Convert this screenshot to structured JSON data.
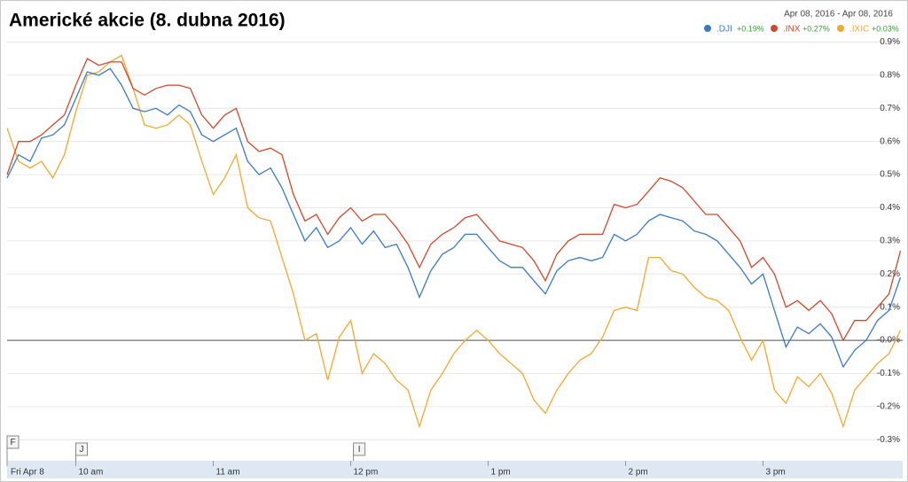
{
  "chart_data": {
    "type": "line",
    "title": "Americké akcie (8. dubna 2016)",
    "date_range": "Apr 08, 2016  -  Apr 08, 2016",
    "x": [
      9.5,
      9.583,
      9.667,
      9.75,
      9.833,
      9.917,
      10,
      10.083,
      10.167,
      10.25,
      10.333,
      10.417,
      10.5,
      10.583,
      10.667,
      10.75,
      10.833,
      10.917,
      11,
      11.083,
      11.167,
      11.25,
      11.333,
      11.417,
      11.5,
      11.583,
      11.667,
      11.75,
      11.833,
      11.917,
      12,
      12.083,
      12.167,
      12.25,
      12.333,
      12.417,
      12.5,
      12.583,
      12.667,
      12.75,
      12.833,
      12.917,
      13,
      13.083,
      13.167,
      13.25,
      13.333,
      13.417,
      13.5,
      13.583,
      13.667,
      13.75,
      13.833,
      13.917,
      14,
      14.083,
      14.167,
      14.25,
      14.333,
      14.417,
      14.5,
      14.583,
      14.667,
      14.75,
      14.833,
      14.917,
      15,
      15.083,
      15.167,
      15.25,
      15.333,
      15.417,
      15.5,
      15.583,
      15.667,
      15.75,
      15.833,
      15.917,
      16
    ],
    "series": [
      {
        "name": ".DJI",
        "change": "+0.19%",
        "color": "#3a7bbf",
        "values": [
          0.49,
          0.56,
          0.54,
          0.61,
          0.62,
          0.65,
          0.73,
          0.81,
          0.8,
          0.82,
          0.77,
          0.7,
          0.69,
          0.7,
          0.68,
          0.71,
          0.69,
          0.62,
          0.6,
          0.62,
          0.64,
          0.54,
          0.5,
          0.52,
          0.46,
          0.38,
          0.3,
          0.34,
          0.28,
          0.3,
          0.34,
          0.29,
          0.33,
          0.28,
          0.29,
          0.22,
          0.13,
          0.21,
          0.26,
          0.28,
          0.32,
          0.32,
          0.28,
          0.24,
          0.22,
          0.22,
          0.18,
          0.14,
          0.21,
          0.24,
          0.25,
          0.24,
          0.25,
          0.32,
          0.3,
          0.32,
          0.36,
          0.38,
          0.37,
          0.36,
          0.33,
          0.32,
          0.3,
          0.26,
          0.22,
          0.17,
          0.2,
          0.09,
          -0.02,
          0.04,
          0.02,
          0.05,
          0.01,
          -0.08,
          -0.03,
          0.0,
          0.06,
          0.09,
          0.19
        ]
      },
      {
        "name": ".INX",
        "change": "+0.27%",
        "color": "#cc4a2b",
        "values": [
          0.5,
          0.6,
          0.6,
          0.62,
          0.65,
          0.68,
          0.77,
          0.85,
          0.83,
          0.84,
          0.84,
          0.76,
          0.74,
          0.76,
          0.77,
          0.77,
          0.76,
          0.68,
          0.64,
          0.68,
          0.7,
          0.6,
          0.57,
          0.58,
          0.56,
          0.44,
          0.36,
          0.38,
          0.32,
          0.37,
          0.4,
          0.36,
          0.38,
          0.38,
          0.34,
          0.29,
          0.22,
          0.29,
          0.32,
          0.34,
          0.37,
          0.38,
          0.34,
          0.3,
          0.29,
          0.28,
          0.24,
          0.18,
          0.26,
          0.3,
          0.32,
          0.32,
          0.32,
          0.41,
          0.4,
          0.41,
          0.45,
          0.49,
          0.48,
          0.46,
          0.42,
          0.38,
          0.38,
          0.34,
          0.3,
          0.22,
          0.25,
          0.2,
          0.1,
          0.12,
          0.09,
          0.12,
          0.08,
          0.0,
          0.06,
          0.06,
          0.1,
          0.14,
          0.27
        ]
      },
      {
        "name": ".IXIC",
        "change": "+0.03%",
        "color": "#f0a830",
        "values": [
          0.64,
          0.54,
          0.52,
          0.54,
          0.49,
          0.56,
          0.69,
          0.8,
          0.81,
          0.84,
          0.86,
          0.76,
          0.65,
          0.64,
          0.65,
          0.68,
          0.65,
          0.54,
          0.44,
          0.49,
          0.56,
          0.4,
          0.37,
          0.36,
          0.25,
          0.14,
          0.0,
          0.02,
          -0.12,
          0.01,
          0.06,
          -0.1,
          -0.04,
          -0.07,
          -0.12,
          -0.15,
          -0.26,
          -0.15,
          -0.1,
          -0.04,
          0.0,
          0.03,
          0.0,
          -0.04,
          -0.07,
          -0.1,
          -0.18,
          -0.22,
          -0.15,
          -0.1,
          -0.06,
          -0.04,
          0.01,
          0.09,
          0.1,
          0.09,
          0.25,
          0.25,
          0.21,
          0.2,
          0.16,
          0.13,
          0.12,
          0.09,
          0.01,
          -0.06,
          0.0,
          -0.15,
          -0.19,
          -0.11,
          -0.14,
          -0.1,
          -0.16,
          -0.26,
          -0.15,
          -0.11,
          -0.07,
          -0.04,
          0.03
        ]
      }
    ],
    "xlim": [
      9.5,
      16
    ],
    "xticks": [
      {
        "value": 9.5,
        "label": "Fri Apr 8"
      },
      {
        "value": 10,
        "label": "10 am"
      },
      {
        "value": 11,
        "label": "11 am"
      },
      {
        "value": 12,
        "label": "12 pm"
      },
      {
        "value": 13,
        "label": "1 pm"
      },
      {
        "value": 14,
        "label": "2 pm"
      },
      {
        "value": 15,
        "label": "3 pm"
      }
    ],
    "ylim": [
      -0.35,
      0.92
    ],
    "yticks": [
      {
        "value": 0.9,
        "label": "0.9%"
      },
      {
        "value": 0.8,
        "label": "0.8%"
      },
      {
        "value": 0.7,
        "label": "0.7%"
      },
      {
        "value": 0.6,
        "label": "0.6%"
      },
      {
        "value": 0.5,
        "label": "0.5%"
      },
      {
        "value": 0.4,
        "label": "0.4%"
      },
      {
        "value": 0.3,
        "label": "0.3%"
      },
      {
        "value": 0.2,
        "label": "0.2%"
      },
      {
        "value": 0.1,
        "label": "0.1%"
      },
      {
        "value": 0,
        "label": "-0.0%"
      },
      {
        "value": -0.1,
        "label": "-0.1%"
      },
      {
        "value": -0.2,
        "label": "-0.2%"
      },
      {
        "value": -0.3,
        "label": "-0.3%"
      }
    ],
    "grid": true,
    "zero_line": true,
    "annotations": [
      {
        "label": "F",
        "x": 9.5
      },
      {
        "label": "J",
        "x": 10
      },
      {
        "label": "I",
        "x": 12.02
      }
    ]
  }
}
